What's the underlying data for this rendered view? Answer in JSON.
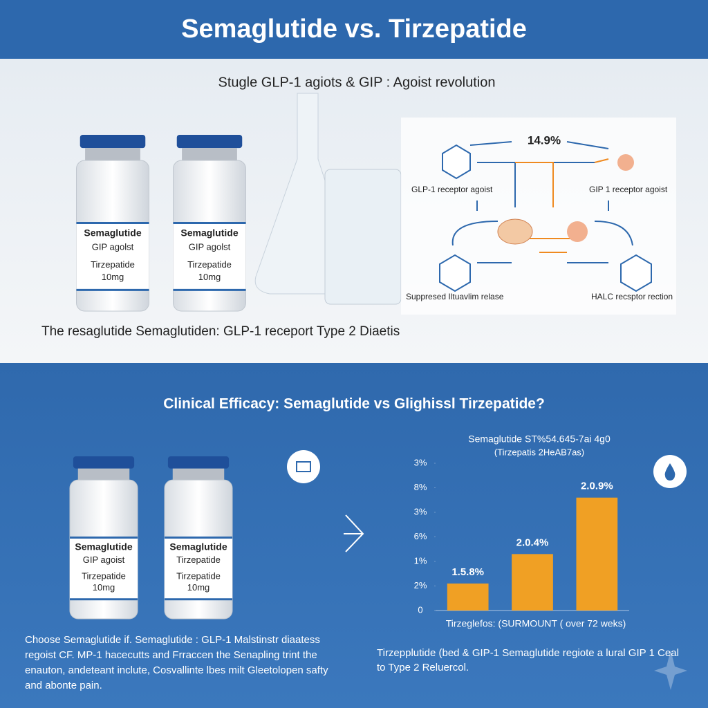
{
  "header": {
    "title": "Semaglutide vs. Tirzepatide"
  },
  "top_panel": {
    "subtitle": "Stugle GLP-1 agiots & GIP : Agoist revolution",
    "vials": [
      {
        "lines": [
          "Semaglutide",
          "GIP agolst",
          "Tirzepatide",
          "10mg"
        ]
      },
      {
        "lines": [
          "Semaglutide",
          "GIP agolst",
          "Tirzepatide",
          "10mg"
        ]
      }
    ],
    "diagram": {
      "headline": "14.9%",
      "labels": [
        "GLP-1 receptor agoist",
        "GIP 1 receptor agoist",
        "Suppresed Iltuavlim relase",
        "HALC recsptor rection"
      ]
    },
    "caption": "The resaglutide Semaglutiden: GLP-1 receport Type 2 Diaetis"
  },
  "bottom_panel": {
    "heading": "Clinical Efficacy: Semaglutide vs Glighissl Tirzepatide?",
    "vials": [
      {
        "lines": [
          "Semaglutide",
          "GIP agoist",
          "Tirzepatide",
          "10mg"
        ]
      },
      {
        "lines": [
          "Semaglutide",
          "Tirzepatide",
          "Tirzepatide",
          "10mg"
        ]
      }
    ],
    "left_text": [
      "Choose Semaglutide if. Semaglutide : GLP-1 Malstinstr diaatess",
      "regoist CF. MP-1 hacecutts and Frraccen the Senapling trint the",
      "enauton, andeteant inclute, Cosvallinte lbes milt Gleetolopen safty",
      "and abonte pain."
    ],
    "right_text": [
      "Tirzepplutide (bed & GIP-1 Semaglutide regiote a lural GIP 1 Ceal",
      "to Type 2 Reluercol."
    ]
  },
  "chart_data": {
    "type": "bar",
    "title": "Semaglutide ST%54.645-7ai 4g0",
    "subtitle": "(Tirzepatis 2HeAB7as)",
    "x_label": "Tirzeglefos: (SURMOUNT ( over 72 weks)",
    "categories": [
      null,
      null,
      null
    ],
    "values": [
      1.1,
      2.3,
      4.6
    ],
    "annotations": [
      "1.5.8%",
      "2.0.4%",
      "2.0.9%"
    ],
    "color": "#f0a024",
    "ylim": [
      0,
      6
    ],
    "yticks": [
      {
        "value": 0,
        "label": "0"
      },
      {
        "value": 1,
        "label": "2%"
      },
      {
        "value": 2,
        "label": "1%"
      },
      {
        "value": 3,
        "label": "6%"
      },
      {
        "value": 4,
        "label": "3%"
      },
      {
        "value": 5,
        "label": "8%"
      },
      {
        "value": 6,
        "label": "3%"
      }
    ]
  }
}
